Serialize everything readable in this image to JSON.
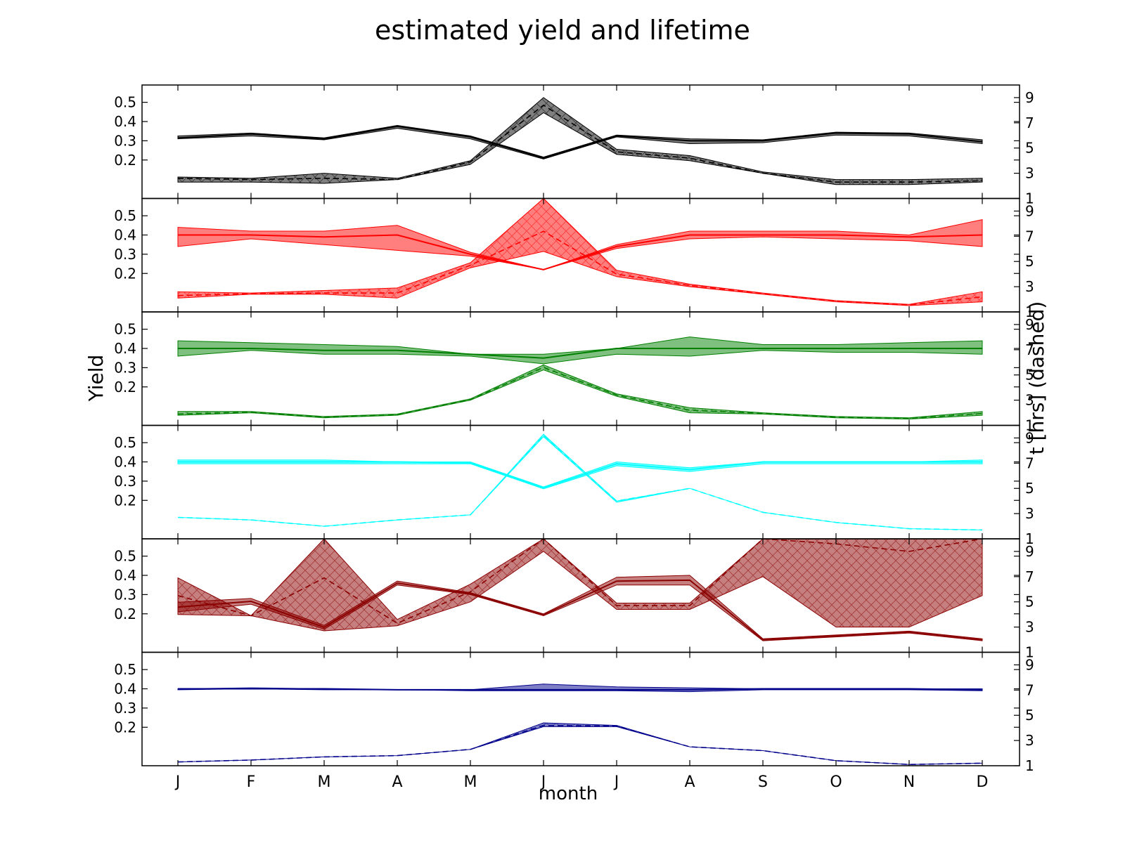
{
  "chart_data": {
    "type": "line",
    "title": "estimated yield and lifetime",
    "xlabel": "month",
    "ylabel_left": "Yield",
    "ylabel_right": "t [hrs] (dashed)",
    "categories": [
      "J",
      "F",
      "M",
      "A",
      "M",
      "J",
      "J",
      "A",
      "S",
      "O",
      "N",
      "D"
    ],
    "ylim_left": [
      0.0,
      0.59
    ],
    "ylim_right": [
      1,
      10
    ],
    "yticks_left": [
      "0.2",
      "0.3",
      "0.4",
      "0.5"
    ],
    "yticks_right": [
      "1",
      "3",
      "5",
      "7",
      "9"
    ],
    "panels": [
      {
        "color": "#000000",
        "fill": "#000000",
        "yield_low": [
          0.31,
          0.325,
          0.305,
          0.365,
          0.31,
          0.205,
          0.32,
          0.285,
          0.29,
          0.33,
          0.325,
          0.285
        ],
        "yield_high": [
          0.325,
          0.34,
          0.315,
          0.38,
          0.325,
          0.215,
          0.33,
          0.31,
          0.305,
          0.345,
          0.34,
          0.305
        ],
        "yield_mid": [
          0.315,
          0.335,
          0.31,
          0.375,
          0.32,
          0.21,
          0.325,
          0.3,
          0.3,
          0.34,
          0.335,
          0.295
        ],
        "t_low": [
          2.3,
          2.3,
          2.2,
          2.5,
          3.7,
          7.8,
          4.5,
          4.0,
          3.0,
          2.1,
          2.1,
          2.3
        ],
        "t_high": [
          2.7,
          2.6,
          3.0,
          2.6,
          4.0,
          9.0,
          4.9,
          4.4,
          3.1,
          2.5,
          2.5,
          2.6
        ],
        "t_mid": [
          2.6,
          2.5,
          2.6,
          2.5,
          3.9,
          8.4,
          4.7,
          4.2,
          3.0,
          2.3,
          2.3,
          2.4
        ]
      },
      {
        "color": "#ff0000",
        "fill": "#ff0000",
        "yield_low": [
          0.34,
          0.38,
          0.35,
          0.32,
          0.29,
          0.22,
          0.33,
          0.38,
          0.39,
          0.38,
          0.37,
          0.34
        ],
        "yield_high": [
          0.44,
          0.42,
          0.42,
          0.45,
          0.31,
          0.22,
          0.35,
          0.42,
          0.42,
          0.42,
          0.4,
          0.48
        ],
        "yield_mid": [
          0.4,
          0.4,
          0.39,
          0.4,
          0.3,
          0.22,
          0.34,
          0.4,
          0.4,
          0.4,
          0.39,
          0.4
        ],
        "t_low": [
          2.1,
          2.4,
          2.4,
          2.1,
          4.5,
          5.8,
          3.8,
          3.0,
          2.4,
          1.8,
          1.5,
          1.8
        ],
        "t_high": [
          2.6,
          2.5,
          2.7,
          2.9,
          4.9,
          10.0,
          4.3,
          3.2,
          2.5,
          1.9,
          1.6,
          2.6
        ],
        "t_mid": [
          2.3,
          2.45,
          2.5,
          2.5,
          4.7,
          7.4,
          4.0,
          3.1,
          2.45,
          1.85,
          1.55,
          2.2
        ]
      },
      {
        "color": "#008000",
        "fill": "#008000",
        "yield_low": [
          0.36,
          0.39,
          0.37,
          0.37,
          0.36,
          0.32,
          0.37,
          0.36,
          0.39,
          0.38,
          0.38,
          0.37
        ],
        "yield_high": [
          0.44,
          0.43,
          0.42,
          0.41,
          0.37,
          0.37,
          0.4,
          0.46,
          0.42,
          0.42,
          0.43,
          0.44
        ],
        "yield_mid": [
          0.4,
          0.4,
          0.39,
          0.39,
          0.37,
          0.35,
          0.4,
          0.4,
          0.4,
          0.4,
          0.4,
          0.4
        ],
        "t_low": [
          1.8,
          2.0,
          1.6,
          1.8,
          3.0,
          5.4,
          3.3,
          2.0,
          1.9,
          1.6,
          1.5,
          1.8
        ],
        "t_high": [
          2.1,
          2.1,
          1.7,
          1.9,
          3.1,
          5.8,
          3.5,
          2.4,
          2.0,
          1.7,
          1.6,
          2.1
        ],
        "t_mid": [
          1.9,
          2.05,
          1.65,
          1.85,
          3.05,
          5.6,
          3.4,
          2.2,
          1.95,
          1.65,
          1.55,
          1.95
        ]
      },
      {
        "color": "#00ffff",
        "fill": "#00ffff",
        "yield_low": [
          0.39,
          0.39,
          0.39,
          0.39,
          0.39,
          0.26,
          0.38,
          0.35,
          0.39,
          0.39,
          0.39,
          0.39
        ],
        "yield_high": [
          0.41,
          0.41,
          0.41,
          0.4,
          0.4,
          0.27,
          0.4,
          0.37,
          0.4,
          0.4,
          0.4,
          0.41
        ],
        "yield_mid": [
          0.4,
          0.4,
          0.4,
          0.4,
          0.395,
          0.265,
          0.39,
          0.36,
          0.4,
          0.4,
          0.4,
          0.4
        ],
        "t_low": [
          2.7,
          2.5,
          2.0,
          2.5,
          2.9,
          9.1,
          3.9,
          5.0,
          3.1,
          2.3,
          1.8,
          1.7
        ],
        "t_high": [
          2.7,
          2.5,
          2.0,
          2.5,
          2.9,
          9.3,
          4.0,
          5.0,
          3.1,
          2.3,
          1.8,
          1.7
        ],
        "t_mid": [
          2.7,
          2.5,
          2.0,
          2.5,
          2.9,
          9.2,
          4.0,
          5.0,
          3.1,
          2.3,
          1.8,
          1.7
        ]
      },
      {
        "color": "#8b0000",
        "fill": "#8b0000",
        "yield_low": [
          0.21,
          0.25,
          0.12,
          0.35,
          0.3,
          0.19,
          0.35,
          0.35,
          0.06,
          0.08,
          0.1,
          0.06
        ],
        "yield_high": [
          0.26,
          0.28,
          0.14,
          0.37,
          0.31,
          0.2,
          0.39,
          0.4,
          0.07,
          0.09,
          0.11,
          0.07
        ],
        "yield_mid": [
          0.235,
          0.265,
          0.13,
          0.36,
          0.305,
          0.195,
          0.37,
          0.375,
          0.065,
          0.085,
          0.105,
          0.065
        ],
        "t_low": [
          4.0,
          3.9,
          2.7,
          3.1,
          5.0,
          9.0,
          4.4,
          4.4,
          7.0,
          3.0,
          3.0,
          5.5
        ],
        "t_high": [
          6.9,
          3.9,
          10.0,
          3.6,
          6.4,
          10.0,
          4.9,
          4.9,
          10.0,
          10.0,
          10.0,
          10.0
        ],
        "t_mid": [
          5.5,
          3.9,
          6.9,
          3.3,
          5.8,
          10.0,
          4.7,
          4.7,
          10.0,
          9.6,
          9.0,
          10.0
        ],
        "clip_top": true
      },
      {
        "color": "#00008b",
        "fill": "#00008b",
        "yield_low": [
          0.395,
          0.4,
          0.395,
          0.395,
          0.39,
          0.39,
          0.39,
          0.385,
          0.395,
          0.395,
          0.395,
          0.39
        ],
        "yield_high": [
          0.4,
          0.405,
          0.4,
          0.395,
          0.395,
          0.425,
          0.41,
          0.405,
          0.4,
          0.4,
          0.4,
          0.4
        ],
        "yield_mid": [
          0.4,
          0.4,
          0.4,
          0.395,
          0.395,
          0.395,
          0.395,
          0.395,
          0.4,
          0.4,
          0.4,
          0.395
        ],
        "t_low": [
          1.3,
          1.45,
          1.7,
          1.8,
          2.3,
          4.1,
          4.1,
          2.5,
          2.2,
          1.4,
          1.1,
          1.2
        ],
        "t_high": [
          1.3,
          1.45,
          1.7,
          1.8,
          2.3,
          4.4,
          4.2,
          2.5,
          2.2,
          1.4,
          1.1,
          1.2
        ],
        "t_mid": [
          1.3,
          1.45,
          1.7,
          1.8,
          2.3,
          4.2,
          4.15,
          2.5,
          2.2,
          1.4,
          1.1,
          1.2
        ]
      }
    ],
    "grid": false
  }
}
